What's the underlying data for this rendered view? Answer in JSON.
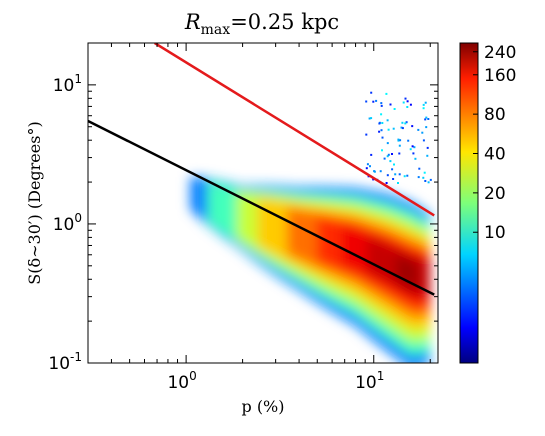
{
  "chart_data": {
    "type": "heatmap",
    "title": "R_max = 0.25 kpc",
    "title_main": "R",
    "title_sub": "max",
    "title_rest": "=0.25 kpc",
    "xlabel": "p (%)",
    "ylabel": "S(δ∼30′) (Degrees°)",
    "x_scale": "log",
    "y_scale": "log",
    "xlim": [
      0.3,
      22
    ],
    "ylim": [
      0.1,
      20
    ],
    "x_ticks": [
      {
        "value": 1,
        "base": "10",
        "exp": "0"
      },
      {
        "value": 10,
        "base": "10",
        "exp": "1"
      }
    ],
    "y_ticks": [
      {
        "value": 0.1,
        "base": "10",
        "exp": "-1"
      },
      {
        "value": 1,
        "base": "10",
        "exp": "0"
      },
      {
        "value": 10,
        "base": "10",
        "exp": "1"
      }
    ],
    "colorbar": {
      "colormap": "jet",
      "range": [
        1,
        280
      ],
      "ticks": [
        {
          "value": 240,
          "label": "240"
        },
        {
          "value": 160,
          "label": "160"
        },
        {
          "value": 80,
          "label": "80"
        },
        {
          "value": 40,
          "label": "40"
        },
        {
          "value": 20,
          "label": "20"
        },
        {
          "value": 10,
          "label": "10"
        }
      ]
    },
    "lines": [
      {
        "color": "#000000",
        "x": [
          0.3,
          21
        ],
        "y": [
          5.5,
          0.31
        ]
      },
      {
        "color": "#e41a1c",
        "x": [
          0.68,
          21
        ],
        "y": [
          20,
          1.15
        ]
      }
    ],
    "density_ridge": {
      "x": [
        1.0,
        2.0,
        4.0,
        8.0,
        12.0,
        16.0,
        20.0
      ],
      "y_center": [
        1.8,
        1.2,
        0.9,
        0.7,
        0.55,
        0.45,
        0.42
      ],
      "peak_counts": [
        2,
        30,
        90,
        170,
        230,
        260,
        200
      ]
    },
    "outlier_cluster": {
      "x_range": [
        9,
        20
      ],
      "y_range": [
        2,
        9
      ]
    }
  }
}
